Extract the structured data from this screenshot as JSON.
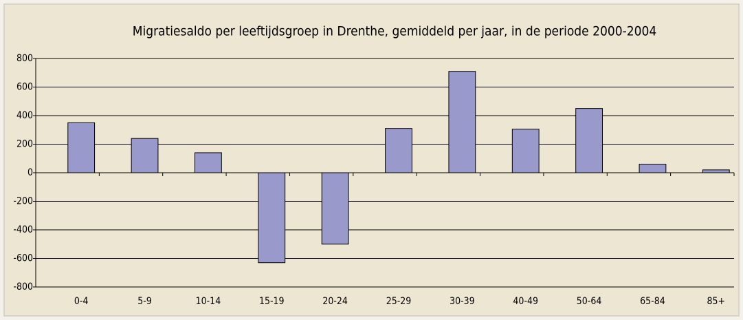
{
  "chart_data": {
    "type": "bar",
    "title": "Migratiesaldo per leeftijdsgroep in Drenthe, gemiddeld per jaar, in de periode 2000-2004",
    "categories": [
      "0-4",
      "5-9",
      "10-14",
      "15-19",
      "20-24",
      "25-29",
      "30-39",
      "40-49",
      "50-64",
      "65-84",
      "85+"
    ],
    "values": [
      350,
      240,
      140,
      -630,
      -500,
      310,
      710,
      305,
      450,
      60,
      20
    ],
    "color": "#9999cc",
    "ylim": [
      -800,
      800
    ],
    "yticks": [
      -800,
      -600,
      -400,
      -200,
      0,
      200,
      400,
      600,
      800
    ],
    "grid": true
  }
}
